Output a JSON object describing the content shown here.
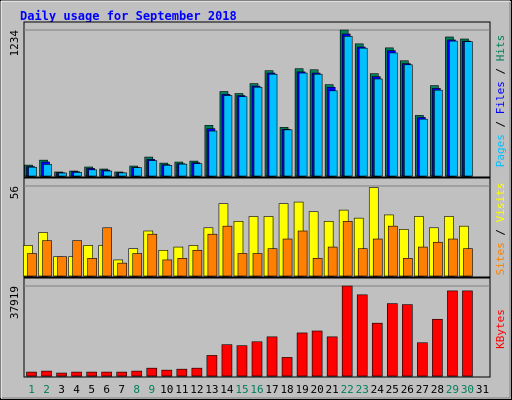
{
  "legend_separator": " / ",
  "chart_data": [
    {
      "type": "bar",
      "title": "Daily usage for September 2018",
      "ylim": [
        0,
        1234
      ],
      "yticks": [
        1234
      ],
      "series": [
        {
          "name": "Hits",
          "color": "#00805c",
          "values": [
            92,
            134,
            34,
            42,
            76,
            59,
            34,
            84,
            160,
            109,
            118,
            126,
            428,
            714,
            697,
            781,
            890,
            411,
            907,
            898,
            772,
            1234,
            1117,
            865,
            1083,
            974,
            512,
            764,
            1175,
            1158,
            0
          ]
        },
        {
          "name": "Files",
          "color": "#0000ff",
          "values": [
            80,
            118,
            28,
            36,
            64,
            50,
            28,
            72,
            140,
            96,
            104,
            112,
            400,
            690,
            680,
            760,
            870,
            395,
            880,
            870,
            750,
            1200,
            1090,
            840,
            1060,
            950,
            495,
            740,
            1150,
            1140,
            0
          ]
        },
        {
          "name": "Pages",
          "color": "#00c0ff",
          "values": [
            74,
            98,
            25,
            30,
            52,
            42,
            26,
            70,
            130,
            90,
            100,
            104,
            380,
            680,
            670,
            750,
            860,
            390,
            870,
            860,
            720,
            1180,
            1080,
            820,
            1040,
            940,
            480,
            725,
            1140,
            1135,
            0
          ]
        }
      ]
    },
    {
      "type": "bar",
      "ylim": [
        0,
        56
      ],
      "yticks": [
        56
      ],
      "series": [
        {
          "name": "Visits",
          "color": "#ffff00",
          "values": [
            19,
            27,
            12,
            12,
            19,
            19,
            10,
            17,
            28,
            16,
            18,
            19,
            30,
            45,
            34,
            37,
            37,
            45,
            46,
            40,
            34,
            41,
            36,
            55,
            38,
            29,
            37,
            30,
            37,
            31,
            0
          ]
        },
        {
          "name": "Sites",
          "color": "#ff8000",
          "values": [
            14,
            22,
            12,
            22,
            11,
            30,
            8,
            14,
            26,
            10,
            11,
            16,
            26,
            31,
            14,
            14,
            17,
            23,
            28,
            11,
            18,
            34,
            17,
            23,
            31,
            11,
            18,
            21,
            23,
            17,
            0
          ]
        }
      ]
    },
    {
      "type": "bar",
      "ylim": [
        0,
        37919
      ],
      "yticks": [
        37919
      ],
      "categories": [
        "1",
        "2",
        "3",
        "4",
        "5",
        "6",
        "7",
        "8",
        "9",
        "10",
        "11",
        "12",
        "13",
        "14",
        "15",
        "16",
        "17",
        "18",
        "19",
        "20",
        "21",
        "22",
        "23",
        "24",
        "25",
        "26",
        "27",
        "28",
        "29",
        "30",
        "31"
      ],
      "category_colors": [
        "#00805c",
        "#00805c",
        "#000000",
        "#000000",
        "#000000",
        "#000000",
        "#000000",
        "#00805c",
        "#00805c",
        "#000000",
        "#000000",
        "#000000",
        "#000000",
        "#000000",
        "#00805c",
        "#00805c",
        "#000000",
        "#000000",
        "#000000",
        "#000000",
        "#000000",
        "#00805c",
        "#00805c",
        "#000000",
        "#000000",
        "#000000",
        "#000000",
        "#000000",
        "#00805c",
        "#00805c",
        "#000000"
      ],
      "series": [
        {
          "name": "KBytes",
          "color": "#ff0000",
          "values": [
            1650,
            2060,
            1240,
            1650,
            1650,
            1650,
            1650,
            2060,
            3300,
            2470,
            2880,
            3300,
            8660,
            13190,
            12780,
            14420,
            16490,
            7830,
            18140,
            18960,
            16490,
            37919,
            34200,
            22250,
            30500,
            30080,
            14010,
            23900,
            35850,
            35850,
            0
          ]
        }
      ]
    }
  ]
}
